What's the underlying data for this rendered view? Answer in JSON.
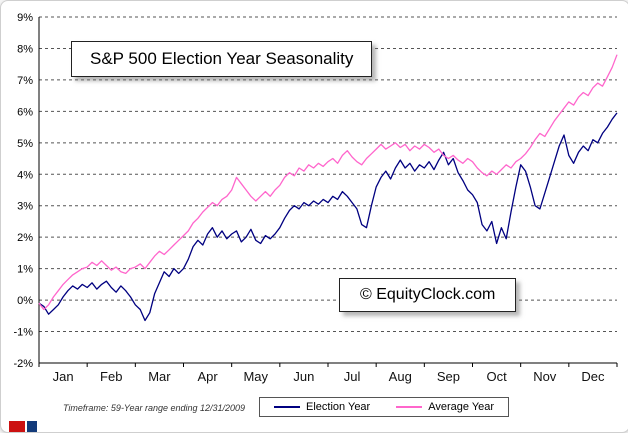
{
  "chart_data": {
    "type": "line",
    "title": "S&P 500 Election Year Seasonality",
    "watermark": "© EquityClock.com",
    "footnote": "Timeframe: 59-Year range ending 12/31/2009",
    "x_categories": [
      "Jan",
      "Feb",
      "Mar",
      "Apr",
      "May",
      "Jun",
      "Jul",
      "Aug",
      "Sep",
      "Oct",
      "Nov",
      "Dec"
    ],
    "ylim": [
      -2,
      9
    ],
    "ytick_step": 1,
    "ytick_suffix": "%",
    "grid": "horizontal-dashed",
    "legend_position": "bottom",
    "series": [
      {
        "name": "Election Year",
        "color": "#000080",
        "values": [
          -0.1,
          -0.2,
          -0.45,
          -0.3,
          -0.15,
          0.1,
          0.3,
          0.45,
          0.35,
          0.5,
          0.4,
          0.55,
          0.35,
          0.5,
          0.6,
          0.4,
          0.25,
          0.45,
          0.3,
          0.1,
          -0.15,
          -0.3,
          -0.65,
          -0.4,
          0.2,
          0.55,
          0.9,
          0.75,
          1.0,
          0.85,
          1.0,
          1.3,
          1.7,
          1.9,
          1.75,
          2.1,
          2.3,
          2.0,
          2.2,
          1.95,
          2.1,
          2.2,
          1.85,
          2.0,
          2.25,
          1.9,
          1.8,
          2.05,
          1.95,
          2.1,
          2.3,
          2.6,
          2.85,
          3.0,
          2.9,
          3.1,
          3.0,
          3.15,
          3.05,
          3.2,
          3.1,
          3.3,
          3.2,
          3.45,
          3.3,
          3.1,
          2.9,
          2.4,
          2.3,
          3.0,
          3.6,
          3.9,
          4.1,
          3.85,
          4.2,
          4.45,
          4.2,
          4.35,
          4.1,
          4.3,
          4.2,
          4.4,
          4.15,
          4.45,
          4.7,
          4.3,
          4.5,
          4.05,
          3.8,
          3.5,
          3.35,
          3.1,
          2.4,
          2.2,
          2.5,
          1.8,
          2.3,
          1.95,
          2.8,
          3.6,
          4.3,
          4.1,
          3.6,
          3.0,
          2.9,
          3.4,
          3.9,
          4.4,
          4.9,
          5.25,
          4.6,
          4.35,
          4.7,
          4.9,
          4.75,
          5.1,
          5.0,
          5.3,
          5.5,
          5.75,
          5.95
        ]
      },
      {
        "name": "Average Year",
        "color": "#ff66cc",
        "values": [
          -0.1,
          -0.3,
          -0.15,
          0.1,
          0.3,
          0.5,
          0.65,
          0.8,
          0.9,
          1.0,
          1.05,
          1.2,
          1.1,
          1.25,
          1.1,
          0.95,
          1.05,
          0.9,
          0.85,
          1.0,
          1.05,
          1.15,
          1.0,
          1.2,
          1.4,
          1.55,
          1.45,
          1.6,
          1.75,
          1.9,
          2.05,
          2.2,
          2.45,
          2.6,
          2.8,
          2.95,
          3.1,
          3.0,
          3.2,
          3.3,
          3.5,
          3.9,
          3.7,
          3.5,
          3.3,
          3.15,
          3.3,
          3.45,
          3.3,
          3.5,
          3.65,
          3.9,
          4.05,
          3.95,
          4.2,
          4.1,
          4.3,
          4.2,
          4.35,
          4.25,
          4.4,
          4.5,
          4.35,
          4.6,
          4.75,
          4.55,
          4.4,
          4.3,
          4.5,
          4.65,
          4.8,
          4.95,
          4.8,
          4.9,
          5.0,
          4.85,
          4.95,
          4.75,
          4.9,
          4.8,
          4.95,
          4.85,
          4.7,
          4.8,
          4.6,
          4.5,
          4.6,
          4.45,
          4.35,
          4.5,
          4.4,
          4.2,
          4.05,
          3.95,
          4.1,
          4.0,
          4.15,
          4.3,
          4.2,
          4.4,
          4.5,
          4.65,
          4.85,
          5.1,
          5.3,
          5.2,
          5.45,
          5.7,
          5.9,
          6.1,
          6.3,
          6.2,
          6.45,
          6.6,
          6.5,
          6.75,
          6.9,
          6.8,
          7.1,
          7.4,
          7.8
        ]
      }
    ]
  }
}
